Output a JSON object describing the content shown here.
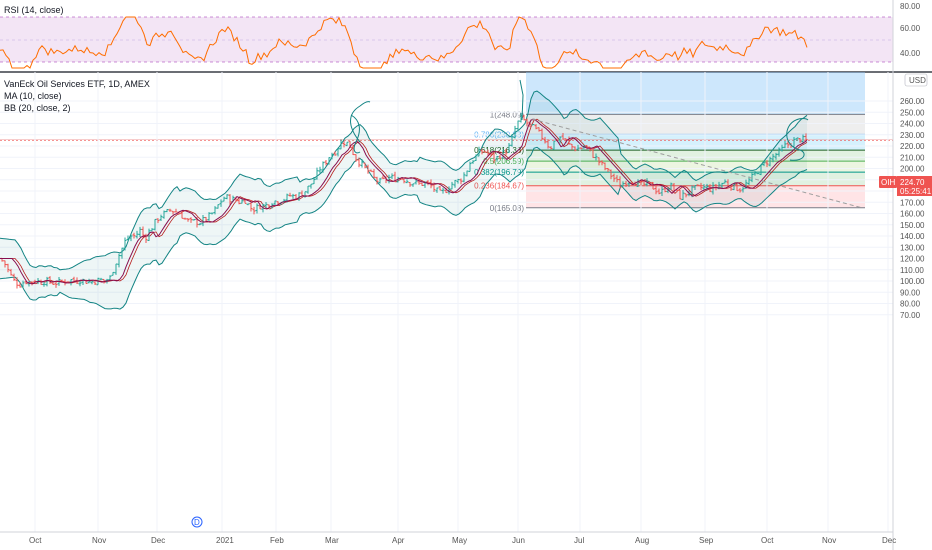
{
  "rsi_panel": {
    "label": "RSI (14, close)",
    "ticks": [
      "80.00",
      "60.00",
      "40.00"
    ]
  },
  "legend": {
    "title": "VanEck Oil Services ETF, 1D, AMEX",
    "ma": "MA (10, close)",
    "bb": "BB (20, close, 2)"
  },
  "price_tag": {
    "symbol": "OIH",
    "price": "224.70",
    "countdown": "05:25:41"
  },
  "usd_label": "USD",
  "d_marker": "D",
  "colors": {
    "up": "#26a69a",
    "down": "#ef5350",
    "ma": "#880e4f",
    "bb": "#138484",
    "rsi": "#ff6d00",
    "rsi_band": "#9c27b0",
    "price_tag": "#ef5350"
  },
  "fib_labels": [
    "1(248.09)",
    "0.786(230.33)",
    "0.618(216.38)",
    "0.5(206.59)",
    "0.382(196.79)",
    "0.236(184.67)",
    "0(165.08)"
  ],
  "chart_data": {
    "type": "candlestick",
    "x_ticks": [
      "Oct",
      "Nov",
      "Dec",
      "2021",
      "Feb",
      "Mar",
      "Apr",
      "May",
      "Jun",
      "Jul",
      "Aug",
      "Sep",
      "Oct",
      "Nov",
      "Dec"
    ],
    "y_ticks": [
      "260.00",
      "250.00",
      "240.00",
      "230.00",
      "220.00",
      "210.00",
      "200.00",
      "190.00",
      "180.00",
      "170.00",
      "160.00",
      "150.00",
      "140.00",
      "130.00",
      "120.00",
      "110.00",
      "100.00",
      "90.00",
      "80.00",
      "70.00"
    ],
    "ylim": [
      70,
      270
    ],
    "price_series": [
      [
        0,
        120
      ],
      [
        5,
        115
      ],
      [
        10,
        106
      ],
      [
        15,
        99
      ],
      [
        20,
        97
      ],
      [
        25,
        100
      ],
      [
        30,
        99
      ],
      [
        35,
        101
      ],
      [
        40,
        99
      ],
      [
        45,
        100
      ],
      [
        50,
        99
      ],
      [
        55,
        98
      ],
      [
        60,
        99
      ],
      [
        65,
        100
      ],
      [
        70,
        101
      ],
      [
        75,
        100
      ],
      [
        80,
        101
      ],
      [
        85,
        100
      ],
      [
        90,
        99
      ],
      [
        95,
        100
      ],
      [
        100,
        101
      ],
      [
        105,
        100
      ],
      [
        110,
        103
      ],
      [
        115,
        115
      ],
      [
        120,
        125
      ],
      [
        125,
        135
      ],
      [
        130,
        140
      ],
      [
        135,
        140
      ],
      [
        140,
        145
      ],
      [
        145,
        138
      ],
      [
        150,
        145
      ],
      [
        155,
        152
      ],
      [
        160,
        158
      ],
      [
        165,
        160
      ],
      [
        170,
        163
      ],
      [
        175,
        162
      ],
      [
        180,
        160
      ],
      [
        185,
        155
      ],
      [
        190,
        152
      ],
      [
        195,
        153
      ],
      [
        200,
        152
      ],
      [
        205,
        155
      ],
      [
        210,
        158
      ],
      [
        215,
        163
      ],
      [
        220,
        170
      ],
      [
        225,
        175
      ],
      [
        230,
        173
      ],
      [
        235,
        172
      ],
      [
        240,
        170
      ],
      [
        245,
        172
      ],
      [
        250,
        165
      ],
      [
        255,
        164
      ],
      [
        260,
        167
      ],
      [
        265,
        167
      ],
      [
        270,
        170
      ],
      [
        275,
        171
      ],
      [
        280,
        172
      ],
      [
        285,
        173
      ],
      [
        290,
        176
      ],
      [
        295,
        175
      ],
      [
        300,
        177
      ],
      [
        305,
        180
      ],
      [
        310,
        185
      ],
      [
        315,
        192
      ],
      [
        320,
        200
      ],
      [
        325,
        205
      ],
      [
        330,
        212
      ],
      [
        335,
        215
      ],
      [
        340,
        222
      ],
      [
        345,
        224
      ],
      [
        350,
        220
      ],
      [
        355,
        210
      ],
      [
        360,
        205
      ],
      [
        365,
        200
      ],
      [
        370,
        196
      ],
      [
        375,
        190
      ],
      [
        380,
        188
      ],
      [
        385,
        190
      ],
      [
        390,
        192
      ],
      [
        395,
        191
      ],
      [
        400,
        192
      ],
      [
        405,
        190
      ],
      [
        410,
        188
      ],
      [
        415,
        187
      ],
      [
        420,
        186
      ],
      [
        425,
        187
      ],
      [
        430,
        185
      ],
      [
        435,
        181
      ],
      [
        440,
        178
      ],
      [
        445,
        180
      ],
      [
        450,
        185
      ],
      [
        455,
        188
      ],
      [
        460,
        190
      ],
      [
        465,
        195
      ],
      [
        470,
        205
      ],
      [
        475,
        210
      ],
      [
        480,
        215
      ],
      [
        485,
        215
      ],
      [
        490,
        212
      ],
      [
        495,
        208
      ],
      [
        500,
        212
      ],
      [
        505,
        215
      ],
      [
        510,
        220
      ],
      [
        515,
        235
      ],
      [
        520,
        245
      ],
      [
        525,
        242
      ],
      [
        530,
        238
      ],
      [
        535,
        235
      ],
      [
        540,
        230
      ],
      [
        545,
        225
      ],
      [
        550,
        218
      ],
      [
        555,
        225
      ],
      [
        560,
        228
      ],
      [
        565,
        225
      ],
      [
        570,
        220
      ],
      [
        575,
        218
      ],
      [
        580,
        218
      ],
      [
        585,
        220
      ],
      [
        590,
        215
      ],
      [
        595,
        210
      ],
      [
        600,
        205
      ],
      [
        605,
        200
      ],
      [
        610,
        195
      ],
      [
        615,
        190
      ],
      [
        620,
        185
      ],
      [
        625,
        188
      ],
      [
        630,
        190
      ],
      [
        635,
        188
      ],
      [
        640,
        185
      ],
      [
        645,
        186
      ],
      [
        650,
        185
      ],
      [
        655,
        182
      ],
      [
        660,
        178
      ],
      [
        665,
        182
      ],
      [
        670,
        185
      ],
      [
        675,
        180
      ],
      [
        680,
        175
      ],
      [
        685,
        177
      ],
      [
        690,
        180
      ],
      [
        695,
        182
      ],
      [
        700,
        183
      ],
      [
        705,
        183
      ],
      [
        710,
        182
      ],
      [
        715,
        183
      ],
      [
        720,
        186
      ],
      [
        725,
        188
      ],
      [
        730,
        185
      ],
      [
        735,
        183
      ],
      [
        740,
        182
      ],
      [
        745,
        185
      ],
      [
        750,
        190
      ],
      [
        755,
        195
      ],
      [
        760,
        200
      ],
      [
        765,
        205
      ],
      [
        770,
        208
      ],
      [
        775,
        212
      ],
      [
        780,
        215
      ],
      [
        785,
        220
      ],
      [
        790,
        222
      ],
      [
        795,
        225
      ],
      [
        800,
        226
      ],
      [
        805,
        225
      ],
      [
        808,
        224.7
      ]
    ],
    "rsi_ylim": [
      25,
      85
    ]
  }
}
